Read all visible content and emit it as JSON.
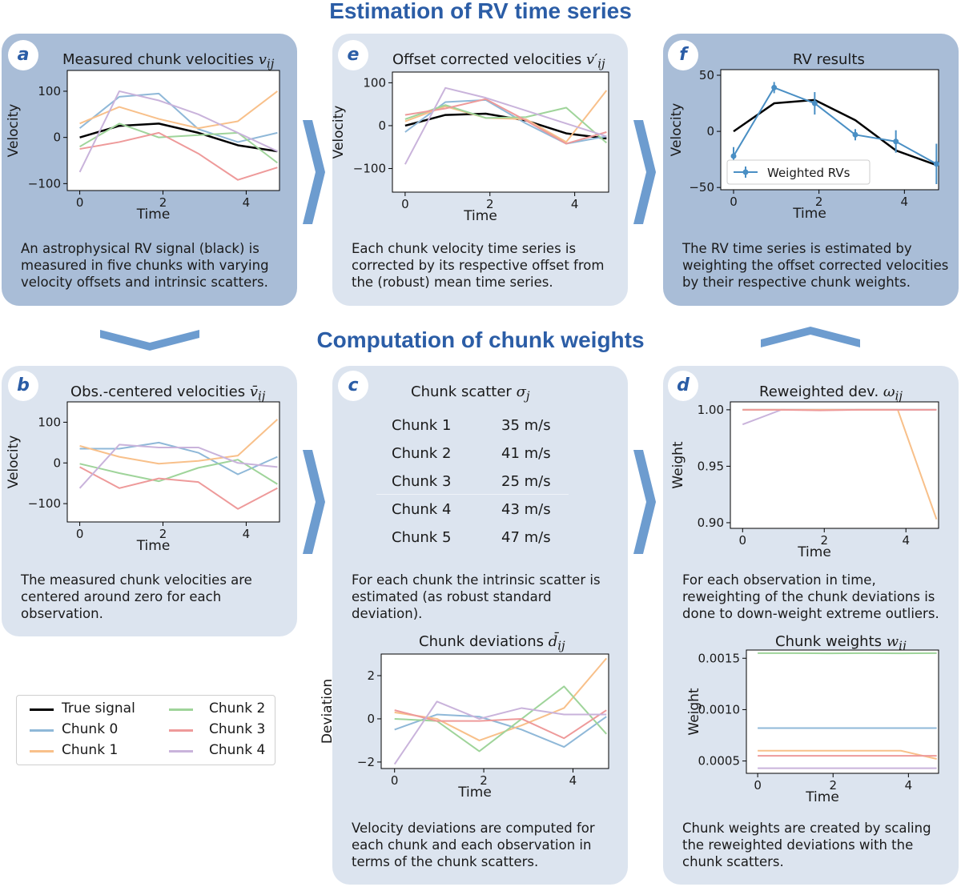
{
  "headings": {
    "top": "Estimation of RV time series",
    "middle": "Computation of chunk weights"
  },
  "colors": {
    "true": "#000000",
    "c0": "#8fb8d8",
    "c1": "#f8c08a",
    "c2": "#9fd49a",
    "c3": "#ee9a9a",
    "c4": "#c9b3db",
    "rv": "#4a8fc4"
  },
  "panels": {
    "a": {
      "badge": "a",
      "title": "Measured chunk velocities",
      "title_sym": "v",
      "title_sub": "ij",
      "caption": "An astrophysical RV signal (black) is\nmeasured in five chunks with varying\nvelocity offsets and intrinsic scatters."
    },
    "e": {
      "badge": "e",
      "title": "Offset corrected velocities",
      "title_sym": "v′",
      "title_sub": "ij",
      "caption": "Each chunk velocity time series is\ncorrected by its respective offset from\nthe (robust) mean time series."
    },
    "f": {
      "badge": "f",
      "title": "RV results",
      "caption": "The RV time series is estimated by\nweighting the offset corrected velocities\nby their respective chunk weights."
    },
    "b": {
      "badge": "b",
      "title": "Obs.-centered velocities",
      "title_sym": "v̄",
      "title_sub": "ij",
      "caption": "The measured chunk velocities are\ncentered around zero for each\nobservation."
    },
    "c": {
      "badge": "c",
      "title": "Chunk scatter",
      "title_sym": "σ",
      "title_sub": "j",
      "rows": [
        {
          "name": "Chunk 1",
          "value": "35 m/s"
        },
        {
          "name": "Chunk 2",
          "value": "41 m/s"
        },
        {
          "name": "Chunk 3",
          "value": "25 m/s"
        },
        {
          "name": "Chunk 4",
          "value": "43 m/s"
        },
        {
          "name": "Chunk 5",
          "value": "47 m/s"
        }
      ],
      "caption": "For each chunk the intrinsic scatter is\nestimated (as robust standard\ndeviation).",
      "title2": "Chunk deviations",
      "title2_sym": "d̄",
      "title2_sub": "ij",
      "caption2": "Velocity deviations are computed for\neach chunk and each observation in\nterms of the chunk scatters."
    },
    "d": {
      "badge": "d",
      "title": "Reweighted dev.",
      "title_sym": "ω",
      "title_sub": "ij",
      "caption": "For each observation in time,\nreweighting of the chunk deviations is\ndone to down-weight extreme outliers.",
      "title2": "Chunk weights",
      "title2_sym": "w",
      "title2_sub": "ij",
      "caption2": "Chunk weights are created by scaling\nthe reweighted deviations with the\nchunk scatters."
    }
  },
  "legend": {
    "true": "True signal",
    "c0": "Chunk 0",
    "c1": "Chunk 1",
    "c2": "Chunk 2",
    "c3": "Chunk 3",
    "c4": "Chunk 4"
  },
  "chart_data": [
    {
      "id": "a",
      "type": "line",
      "xlabel": "Time",
      "ylabel": "Velocity",
      "xlim": [
        -0.3,
        4.8
      ],
      "ylim": [
        -115,
        145
      ],
      "xticks": [
        0,
        2,
        4
      ],
      "yticks": [
        100,
        0,
        -100
      ],
      "ytick_labels": [
        "100",
        "0",
        "−100"
      ],
      "x": [
        0,
        0.95,
        1.9,
        2.85,
        3.8,
        4.75
      ],
      "series": [
        {
          "name": "True signal",
          "key": "true",
          "values": [
            0,
            25,
            30,
            10,
            -17,
            -30
          ]
        },
        {
          "name": "Chunk 0",
          "key": "c0",
          "values": [
            20,
            88,
            95,
            18,
            -10,
            10
          ]
        },
        {
          "name": "Chunk 1",
          "key": "c1",
          "values": [
            30,
            66,
            40,
            20,
            35,
            100
          ]
        },
        {
          "name": "Chunk 2",
          "key": "c2",
          "values": [
            -20,
            30,
            0,
            5,
            10,
            -55
          ]
        },
        {
          "name": "Chunk 3",
          "key": "c3",
          "values": [
            -25,
            -10,
            10,
            -35,
            -92,
            -65
          ]
        },
        {
          "name": "Chunk 4",
          "key": "c4",
          "values": [
            -75,
            100,
            80,
            50,
            10,
            -30
          ]
        }
      ]
    },
    {
      "id": "e",
      "type": "line",
      "xlabel": "Time",
      "ylabel": "Velocity",
      "xlim": [
        -0.3,
        4.8
      ],
      "ylim": [
        -155,
        125
      ],
      "xticks": [
        0,
        2,
        4
      ],
      "yticks": [
        100,
        0,
        -100
      ],
      "ytick_labels": [
        "100",
        "0",
        "−100"
      ],
      "x": [
        0,
        0.95,
        1.9,
        2.85,
        3.8,
        4.75
      ],
      "series": [
        {
          "name": "True signal",
          "key": "true",
          "values": [
            0,
            25,
            28,
            12,
            -18,
            -30
          ]
        },
        {
          "name": "Chunk 0",
          "key": "c0",
          "values": [
            -15,
            55,
            60,
            5,
            -42,
            -25
          ]
        },
        {
          "name": "Chunk 1",
          "key": "c1",
          "values": [
            10,
            45,
            18,
            15,
            -38,
            82
          ]
        },
        {
          "name": "Chunk 2",
          "key": "c2",
          "values": [
            15,
            48,
            18,
            20,
            42,
            -40
          ]
        },
        {
          "name": "Chunk 3",
          "key": "c3",
          "values": [
            25,
            40,
            62,
            12,
            -42,
            -15
          ]
        },
        {
          "name": "Chunk 4",
          "key": "c4",
          "values": [
            -90,
            88,
            65,
            35,
            5,
            -25
          ]
        }
      ]
    },
    {
      "id": "f",
      "type": "line",
      "xlabel": "Time",
      "ylabel": "Velocity",
      "xlim": [
        -0.3,
        4.8
      ],
      "ylim": [
        -52,
        55
      ],
      "xticks": [
        0,
        2,
        4
      ],
      "yticks": [
        50,
        0,
        -50
      ],
      "ytick_labels": [
        "50",
        "0",
        "−50"
      ],
      "x": [
        0,
        0.95,
        1.9,
        2.85,
        3.8,
        4.75
      ],
      "series": [
        {
          "name": "True signal",
          "key": "true",
          "values": [
            0,
            25,
            28,
            10,
            -17,
            -30
          ]
        },
        {
          "name": "Weighted RVs",
          "key": "rv",
          "values": [
            -22,
            39,
            25,
            -3,
            -9,
            -29
          ],
          "errors": [
            8,
            5,
            10,
            5,
            10,
            18
          ]
        }
      ],
      "legend": "Weighted RVs"
    },
    {
      "id": "b",
      "type": "line",
      "xlabel": "Time",
      "ylabel": "Velocity",
      "xlim": [
        -0.3,
        4.8
      ],
      "ylim": [
        -145,
        150
      ],
      "xticks": [
        0,
        2,
        4
      ],
      "yticks": [
        100,
        0,
        -100
      ],
      "ytick_labels": [
        "100",
        "0",
        "−100"
      ],
      "x": [
        0,
        0.95,
        1.9,
        2.85,
        3.8,
        4.75
      ],
      "series": [
        {
          "name": "Chunk 0",
          "key": "c0",
          "values": [
            35,
            35,
            50,
            25,
            -28,
            15
          ]
        },
        {
          "name": "Chunk 1",
          "key": "c1",
          "values": [
            42,
            15,
            -2,
            5,
            18,
            107
          ]
        },
        {
          "name": "Chunk 2",
          "key": "c2",
          "values": [
            -2,
            -25,
            -45,
            -12,
            8,
            -52
          ]
        },
        {
          "name": "Chunk 3",
          "key": "c3",
          "values": [
            -10,
            -62,
            -38,
            -47,
            -113,
            -62
          ]
        },
        {
          "name": "Chunk 4",
          "key": "c4",
          "values": [
            -62,
            45,
            38,
            38,
            0,
            -10
          ]
        }
      ]
    },
    {
      "id": "c2",
      "type": "line",
      "xlabel": "Time",
      "ylabel": "Deviation",
      "xlim": [
        -0.3,
        4.8
      ],
      "ylim": [
        -2.3,
        3.0
      ],
      "xticks": [
        0,
        2,
        4
      ],
      "yticks": [
        2,
        0,
        -2
      ],
      "ytick_labels": [
        "2",
        "0",
        "−2"
      ],
      "x": [
        0,
        0.95,
        1.9,
        2.85,
        3.8,
        4.75
      ],
      "series": [
        {
          "name": "Chunk 0",
          "key": "c0",
          "values": [
            -0.5,
            0.2,
            0.1,
            -0.5,
            -1.3,
            0.1
          ]
        },
        {
          "name": "Chunk 1",
          "key": "c1",
          "values": [
            0.3,
            0.0,
            -1.0,
            -0.3,
            0.5,
            2.8
          ]
        },
        {
          "name": "Chunk 2",
          "key": "c2",
          "values": [
            0.0,
            -0.1,
            -1.5,
            0.0,
            1.5,
            -0.7
          ]
        },
        {
          "name": "Chunk 3",
          "key": "c3",
          "values": [
            0.4,
            -0.1,
            -0.1,
            0.0,
            -0.9,
            0.4
          ]
        },
        {
          "name": "Chunk 4",
          "key": "c4",
          "values": [
            -2.1,
            0.8,
            0.0,
            0.5,
            0.2,
            0.2
          ]
        }
      ]
    },
    {
      "id": "d",
      "type": "line",
      "xlabel": "Time",
      "ylabel": "Weight",
      "xlim": [
        -0.3,
        4.8
      ],
      "ylim": [
        0.895,
        1.007
      ],
      "xticks": [
        0,
        2,
        4
      ],
      "yticks": [
        1.0,
        0.95,
        0.9
      ],
      "ytick_labels": [
        "1.00",
        "0.95",
        "0.90"
      ],
      "x": [
        0,
        0.95,
        1.9,
        2.85,
        3.8,
        4.75
      ],
      "series": [
        {
          "name": "Chunk 0",
          "key": "c0",
          "values": [
            1.0,
            1.0,
            1.0,
            1.0,
            1.0,
            1.0
          ]
        },
        {
          "name": "Chunk 2",
          "key": "c2",
          "values": [
            1.0,
            1.0,
            1.0,
            1.0,
            1.0,
            1.0
          ]
        },
        {
          "name": "Chunk 4",
          "key": "c4",
          "values": [
            0.987,
            1.0,
            1.0,
            1.0,
            1.0,
            1.0
          ]
        },
        {
          "name": "Chunk 1",
          "key": "c1",
          "values": [
            1.0,
            1.0,
            1.0,
            1.0,
            1.0,
            0.903
          ]
        },
        {
          "name": "Chunk 3",
          "key": "c3",
          "values": [
            1.0,
            1.0,
            0.9995,
            1.0,
            1.0,
            1.0
          ]
        }
      ]
    },
    {
      "id": "d2",
      "type": "line",
      "xlabel": "Time",
      "ylabel": "Weight",
      "xlim": [
        -0.3,
        4.8
      ],
      "ylim": [
        0.00038,
        0.00158
      ],
      "xticks": [
        0,
        2,
        4
      ],
      "yticks": [
        0.0015,
        0.001,
        0.0005
      ],
      "ytick_labels": [
        "0.0015",
        "0.0010",
        "0.0005"
      ],
      "x": [
        0,
        0.95,
        1.9,
        2.85,
        3.8,
        4.75
      ],
      "series": [
        {
          "name": "Chunk 2",
          "key": "c2",
          "values": [
            0.00155,
            0.00155,
            0.001548,
            0.00155,
            0.001548,
            0.00155
          ]
        },
        {
          "name": "Chunk 0",
          "key": "c0",
          "values": [
            0.00082,
            0.00082,
            0.00082,
            0.00082,
            0.00082,
            0.00082
          ]
        },
        {
          "name": "Chunk 1",
          "key": "c1",
          "values": [
            0.0006,
            0.0006,
            0.0006,
            0.0006,
            0.0006,
            0.00052
          ]
        },
        {
          "name": "Chunk 3",
          "key": "c3",
          "values": [
            0.00055,
            0.00055,
            0.00055,
            0.00055,
            0.00055,
            0.00055
          ]
        },
        {
          "name": "Chunk 4",
          "key": "c4",
          "values": [
            0.00043,
            0.00043,
            0.00043,
            0.00043,
            0.00043,
            0.00043
          ]
        }
      ]
    }
  ]
}
